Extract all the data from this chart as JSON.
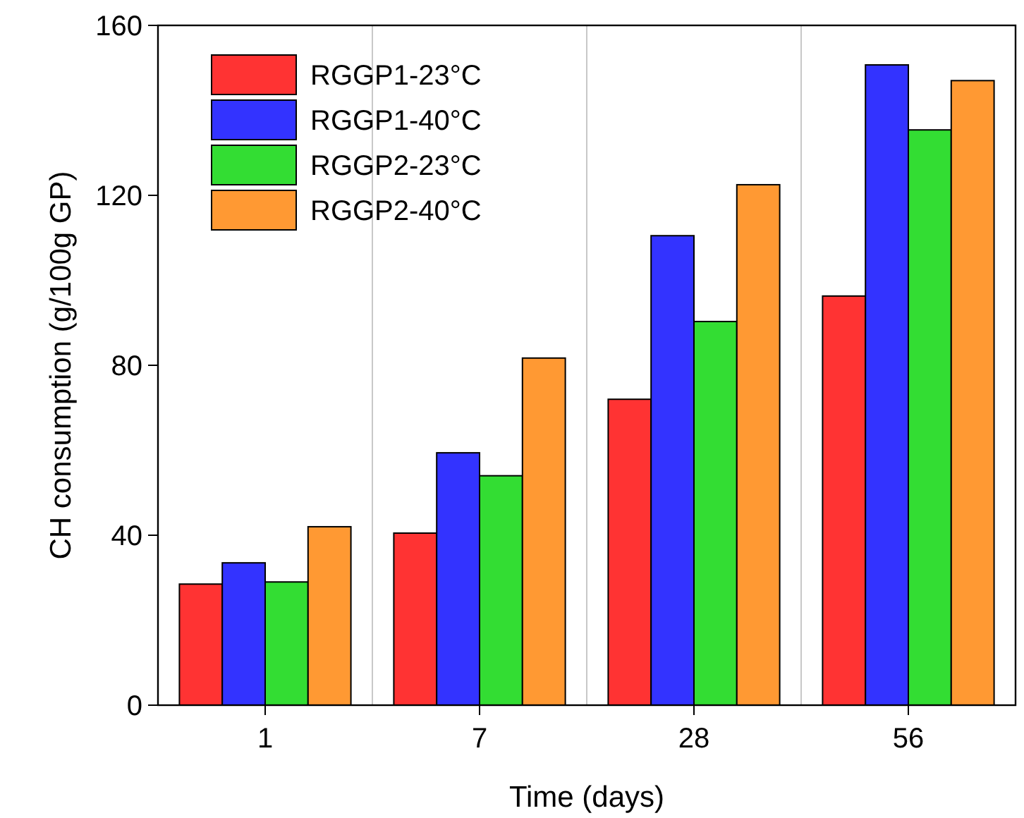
{
  "chart_data": {
    "type": "bar",
    "xlabel": "Time (days)",
    "ylabel": "CH consumption (g/100g GP)",
    "categories": [
      "1",
      "7",
      "28",
      "56"
    ],
    "series": [
      {
        "name": "RGGP1-23°C",
        "color": "#ff3333",
        "values": [
          28.5,
          40.5,
          72,
          96.3
        ]
      },
      {
        "name": "RGGP1-40°C",
        "color": "#3333ff",
        "values": [
          33.5,
          59.4,
          110.5,
          150.7
        ]
      },
      {
        "name": "RGGP2-23°C",
        "color": "#33dd33",
        "values": [
          29,
          54,
          90.3,
          135.4
        ]
      },
      {
        "name": "RGGP2-40°C",
        "color": "#ff9933",
        "values": [
          42,
          81.7,
          122.5,
          147
        ]
      }
    ],
    "ylim": [
      0,
      160
    ],
    "yticks": [
      0,
      40,
      80,
      120,
      160
    ],
    "grid": "x",
    "legend": "top left"
  }
}
